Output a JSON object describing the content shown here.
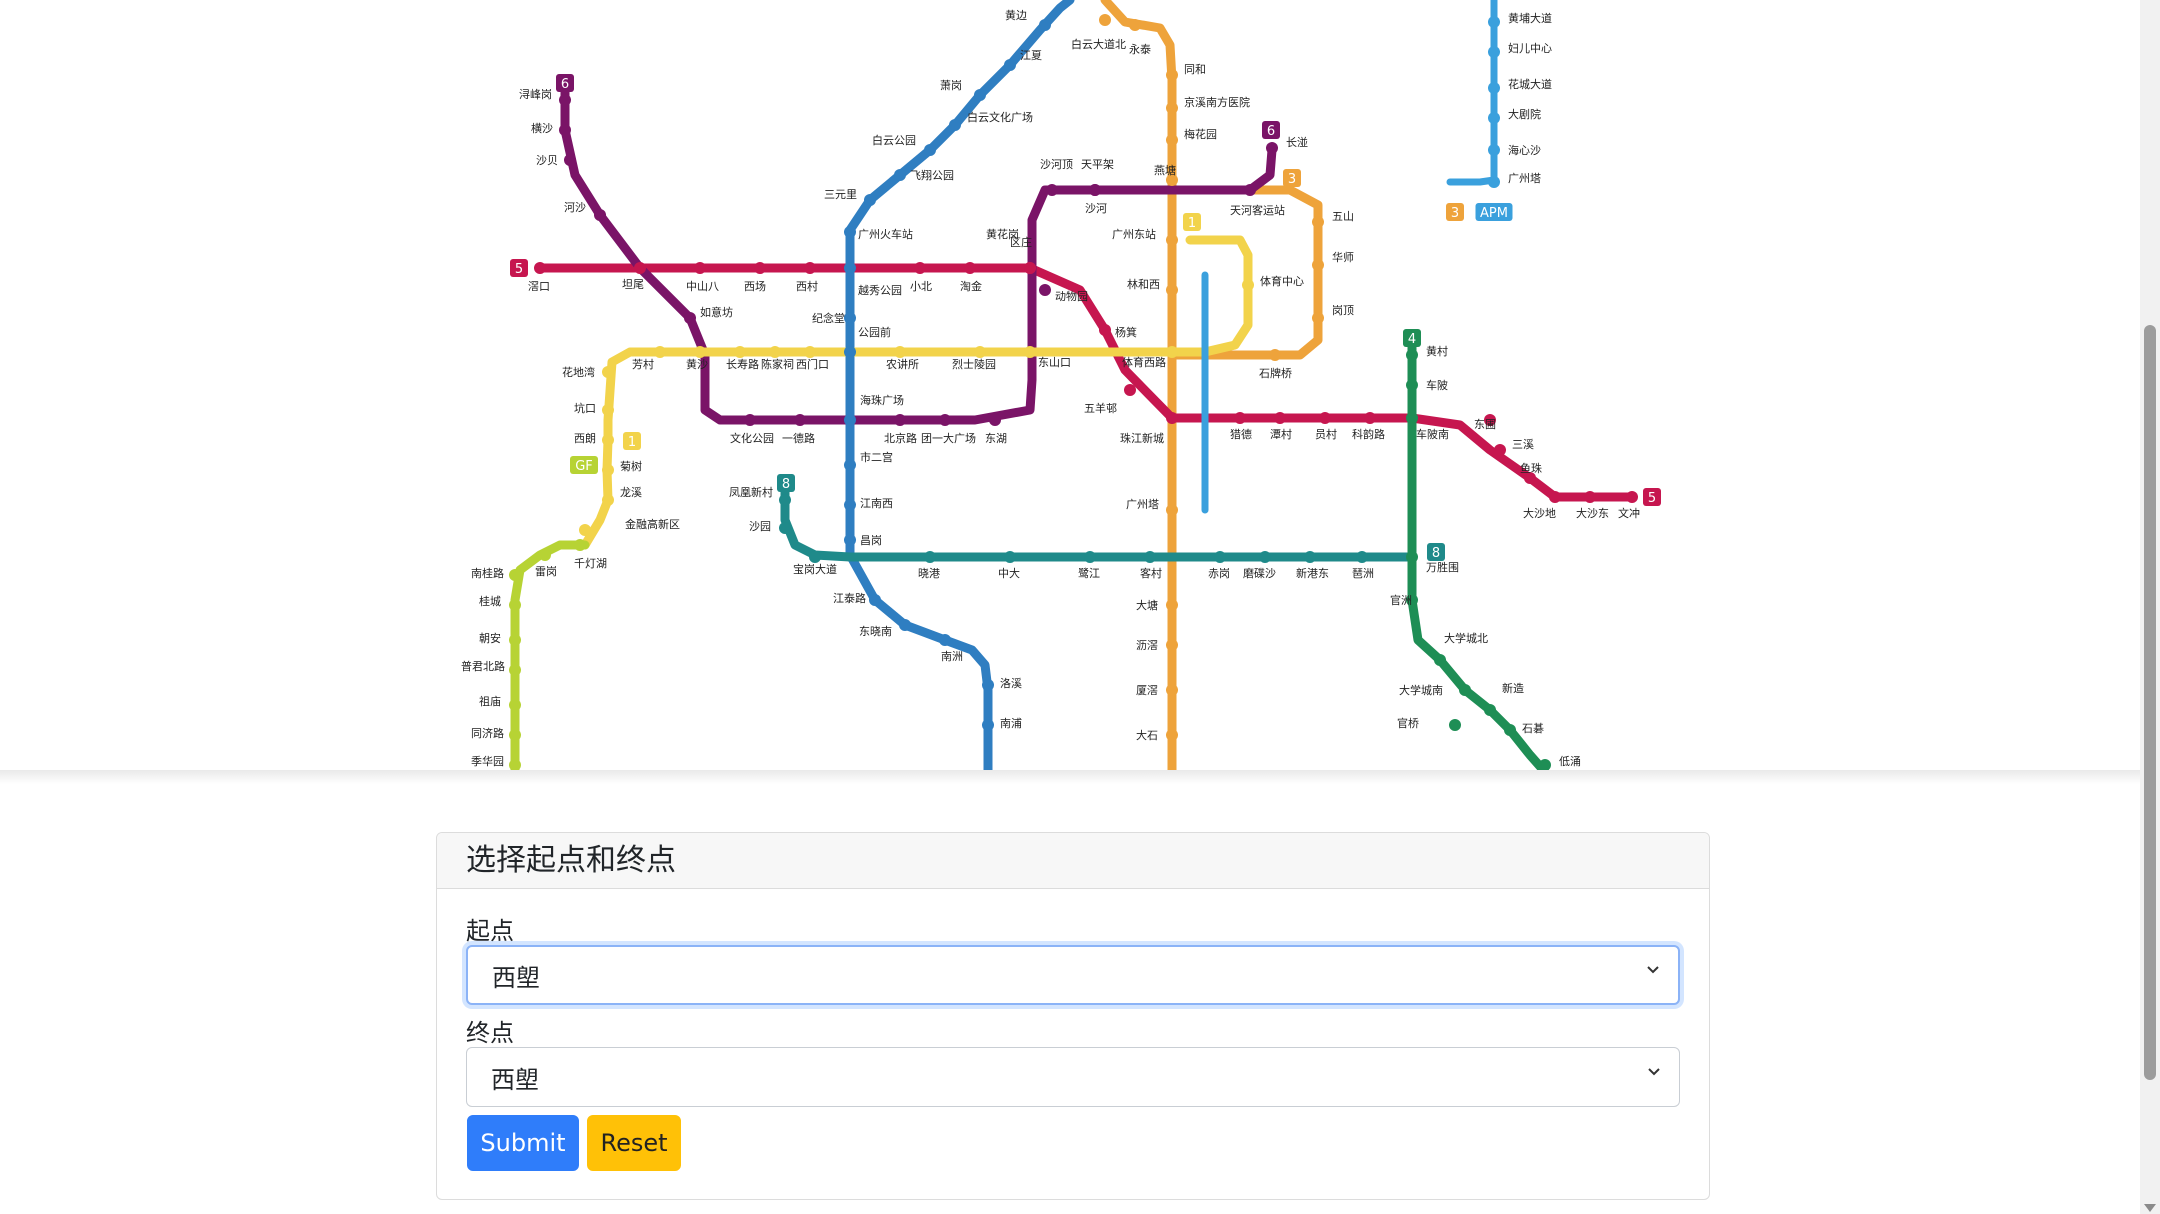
{
  "map": {
    "stations": [
      {
        "id": "s1",
        "name": "黄边"
      },
      {
        "id": "s2",
        "name": "江夏"
      },
      {
        "id": "s3",
        "name": "萧岗"
      },
      {
        "id": "s4",
        "name": "白云文化广场"
      },
      {
        "id": "s5",
        "name": "白云公园"
      },
      {
        "id": "s6",
        "name": "飞翔公园"
      },
      {
        "id": "s7",
        "name": "三元里"
      },
      {
        "id": "s8",
        "name": "广州火车站"
      },
      {
        "id": "s9",
        "name": "白云大道北"
      },
      {
        "id": "s10",
        "name": "永泰"
      },
      {
        "id": "s11",
        "name": "同和"
      },
      {
        "id": "s12",
        "name": "京溪南方医院"
      },
      {
        "id": "s13",
        "name": "梅花园"
      },
      {
        "id": "s14",
        "name": "燕塘"
      },
      {
        "id": "s15",
        "name": "长湴"
      },
      {
        "id": "s16",
        "name": "天河客运站"
      },
      {
        "id": "s17",
        "name": "五山"
      },
      {
        "id": "s18",
        "name": "华师"
      },
      {
        "id": "s19",
        "name": "岗顶"
      },
      {
        "id": "s20",
        "name": "石牌桥"
      },
      {
        "id": "s21",
        "name": "体育中心"
      },
      {
        "id": "s22",
        "name": "林和西"
      },
      {
        "id": "s23",
        "name": "广州东站"
      },
      {
        "id": "s24",
        "name": "沙河顶"
      },
      {
        "id": "s25",
        "name": "天平架"
      },
      {
        "id": "s26",
        "name": "沙河"
      },
      {
        "id": "s27",
        "name": "黄花岗"
      },
      {
        "id": "s28",
        "name": "区庄"
      },
      {
        "id": "s29",
        "name": "淘金"
      },
      {
        "id": "s30",
        "name": "小北"
      },
      {
        "id": "s31",
        "name": "越秀公园"
      },
      {
        "id": "s32",
        "name": "西村"
      },
      {
        "id": "s33",
        "name": "西场"
      },
      {
        "id": "s34",
        "name": "中山八"
      },
      {
        "id": "s35",
        "name": "坦尾"
      },
      {
        "id": "s36",
        "name": "浔峰岗"
      },
      {
        "id": "s37",
        "name": "横沙"
      },
      {
        "id": "s38",
        "name": "沙贝"
      },
      {
        "id": "s39",
        "name": "河沙"
      },
      {
        "id": "s40",
        "name": "滘口"
      },
      {
        "id": "s41",
        "name": "如意坊"
      },
      {
        "id": "s42",
        "name": "纪念堂"
      },
      {
        "id": "s43",
        "name": "公园前"
      },
      {
        "id": "s44",
        "name": "动物园"
      },
      {
        "id": "s45",
        "name": "杨箕"
      },
      {
        "id": "s46",
        "name": "体育西路"
      },
      {
        "id": "s47",
        "name": "东山口"
      },
      {
        "id": "s48",
        "name": "烈士陵园"
      },
      {
        "id": "s49",
        "name": "农讲所"
      },
      {
        "id": "s50",
        "name": "西门口"
      },
      {
        "id": "s51",
        "name": "陈家祠"
      },
      {
        "id": "s52",
        "name": "长寿路"
      },
      {
        "id": "s53",
        "name": "黄沙"
      },
      {
        "id": "s54",
        "name": "芳村"
      },
      {
        "id": "s55",
        "name": "花地湾"
      },
      {
        "id": "s56",
        "name": "坑口"
      },
      {
        "id": "s57",
        "name": "西朗"
      },
      {
        "id": "s58",
        "name": "菊树"
      },
      {
        "id": "s59",
        "name": "龙溪"
      },
      {
        "id": "s60",
        "name": "金融高新区"
      },
      {
        "id": "s61",
        "name": "文化公园"
      },
      {
        "id": "s62",
        "name": "一德路"
      },
      {
        "id": "s63",
        "name": "海珠广场"
      },
      {
        "id": "s64",
        "name": "北京路"
      },
      {
        "id": "s65",
        "name": "团一大广场"
      },
      {
        "id": "s66",
        "name": "东湖"
      },
      {
        "id": "s67",
        "name": "五羊邨"
      },
      {
        "id": "s68",
        "name": "珠江新城"
      },
      {
        "id": "s69",
        "name": "猎德"
      },
      {
        "id": "s70",
        "name": "潭村"
      },
      {
        "id": "s71",
        "name": "员村"
      },
      {
        "id": "s72",
        "name": "科韵路"
      },
      {
        "id": "s73",
        "name": "车陂南"
      },
      {
        "id": "s74",
        "name": "东圃"
      },
      {
        "id": "s75",
        "name": "三溪"
      },
      {
        "id": "s76",
        "name": "鱼珠"
      },
      {
        "id": "s77",
        "name": "大沙地"
      },
      {
        "id": "s78",
        "name": "大沙东"
      },
      {
        "id": "s79",
        "name": "文冲"
      },
      {
        "id": "s80",
        "name": "黄村"
      },
      {
        "id": "s81",
        "name": "车陂"
      },
      {
        "id": "s82",
        "name": "万胜围"
      },
      {
        "id": "s83",
        "name": "官洲"
      },
      {
        "id": "s84",
        "name": "大学城北"
      },
      {
        "id": "s85",
        "name": "大学城南"
      },
      {
        "id": "s86",
        "name": "新造"
      },
      {
        "id": "s87",
        "name": "官桥"
      },
      {
        "id": "s88",
        "name": "石碁"
      },
      {
        "id": "s89",
        "name": "市二宫"
      },
      {
        "id": "s90",
        "name": "江南西"
      },
      {
        "id": "s91",
        "name": "昌岗"
      },
      {
        "id": "s92",
        "name": "江泰路"
      },
      {
        "id": "s93",
        "name": "东晓南"
      },
      {
        "id": "s94",
        "name": "南洲"
      },
      {
        "id": "s95",
        "name": "洛溪"
      },
      {
        "id": "s96",
        "name": "南浦"
      },
      {
        "id": "s97",
        "name": "凤凰新村"
      },
      {
        "id": "s98",
        "name": "沙园"
      },
      {
        "id": "s99",
        "name": "宝岗大道"
      },
      {
        "id": "s100",
        "name": "晓港"
      },
      {
        "id": "s101",
        "name": "中大"
      },
      {
        "id": "s102",
        "name": "鹭江"
      },
      {
        "id": "s103",
        "name": "客村"
      },
      {
        "id": "s104",
        "name": "赤岗"
      },
      {
        "id": "s105",
        "name": "磨碟沙"
      },
      {
        "id": "s106",
        "name": "新港东"
      },
      {
        "id": "s107",
        "name": "琶洲"
      },
      {
        "id": "s108",
        "name": "广州塔"
      },
      {
        "id": "s109",
        "name": "大塘"
      },
      {
        "id": "s110",
        "name": "沥滘"
      },
      {
        "id": "s111",
        "name": "厦滘"
      },
      {
        "id": "s112",
        "name": "大石"
      },
      {
        "id": "s113",
        "name": "南桂路"
      },
      {
        "id": "s114",
        "name": "桂城"
      },
      {
        "id": "s115",
        "name": "朝安"
      },
      {
        "id": "s116",
        "name": "普君北路"
      },
      {
        "id": "s117",
        "name": "祖庙"
      },
      {
        "id": "s118",
        "name": "同济路"
      },
      {
        "id": "s119",
        "name": "季华园"
      },
      {
        "id": "s120",
        "name": "雷岗"
      },
      {
        "id": "s121",
        "name": "千灯湖"
      },
      {
        "id": "s122",
        "name": "黄埔大道"
      },
      {
        "id": "s123",
        "name": "妇儿中心"
      },
      {
        "id": "s124",
        "name": "花城大道"
      },
      {
        "id": "s125",
        "name": "大剧院"
      },
      {
        "id": "s126",
        "name": "海心沙"
      },
      {
        "id": "s127",
        "name": "广州塔"
      },
      {
        "id": "s128",
        "name": "低涌"
      }
    ],
    "badges": {
      "l3": "3",
      "l4": "4",
      "l5": "5",
      "l6": "6",
      "l8": "8",
      "gf": "GF",
      "apm": "APM",
      "l1": "1"
    },
    "line_colors": {
      "line1": "#f2d34b",
      "line2": "#2f7ec1",
      "line3": "#eea33b",
      "line4": "#1e8e55",
      "line5": "#c6164f",
      "line6": "#7a1467",
      "line8": "#1f8a8a",
      "guangfo": "#b7d334",
      "apm": "#3aa0dd"
    }
  },
  "form": {
    "title": "选择起点和终点",
    "start_label": "起点",
    "start_value": "西塱",
    "end_label": "终点",
    "end_value": "西塱",
    "submit_label": "Submit",
    "reset_label": "Reset"
  }
}
